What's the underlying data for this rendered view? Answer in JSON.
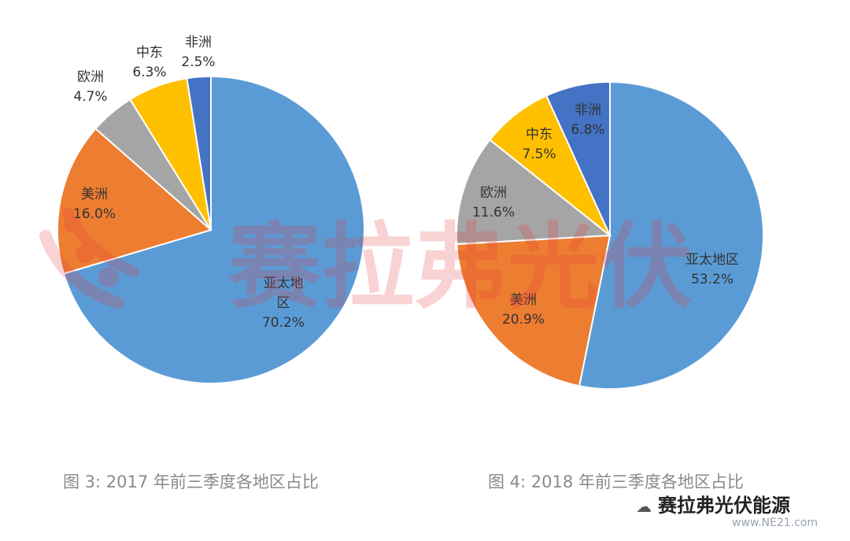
{
  "watermark": {
    "text": "赛拉弗光伏"
  },
  "chart_data": [
    {
      "type": "pie",
      "title": "",
      "caption": "图 3: 2017 年前三季度各地区占比",
      "slices": [
        {
          "label": "亚太地区",
          "value": 70.2,
          "display": "70.2%",
          "color": "#5B9BD5"
        },
        {
          "label": "美洲",
          "value": 16.0,
          "display": "16.0%",
          "color": "#ED7D31"
        },
        {
          "label": "欧洲",
          "value": 4.7,
          "display": "4.7%",
          "color": "#A5A5A5"
        },
        {
          "label": "中东",
          "value": 6.3,
          "display": "6.3%",
          "color": "#FFC000"
        },
        {
          "label": "非洲",
          "value": 2.5,
          "display": "2.5%",
          "color": "#4472C4"
        }
      ]
    },
    {
      "type": "pie",
      "title": "",
      "caption": "图 4: 2018 年前三季度各地区占比",
      "slices": [
        {
          "label": "亚太地区",
          "value": 53.2,
          "display": "53.2%",
          "color": "#5B9BD5"
        },
        {
          "label": "美洲",
          "value": 20.9,
          "display": "20.9%",
          "color": "#ED7D31"
        },
        {
          "label": "欧洲",
          "value": 11.6,
          "display": "11.6%",
          "color": "#A5A5A5"
        },
        {
          "label": "中东",
          "value": 7.5,
          "display": "7.5%",
          "color": "#FFC000"
        },
        {
          "label": "非洲",
          "value": 6.8,
          "display": "6.8%",
          "color": "#4472C4"
        }
      ]
    }
  ],
  "source": {
    "brand": "赛拉弗光伏能源",
    "site": "www.NE21.com"
  }
}
